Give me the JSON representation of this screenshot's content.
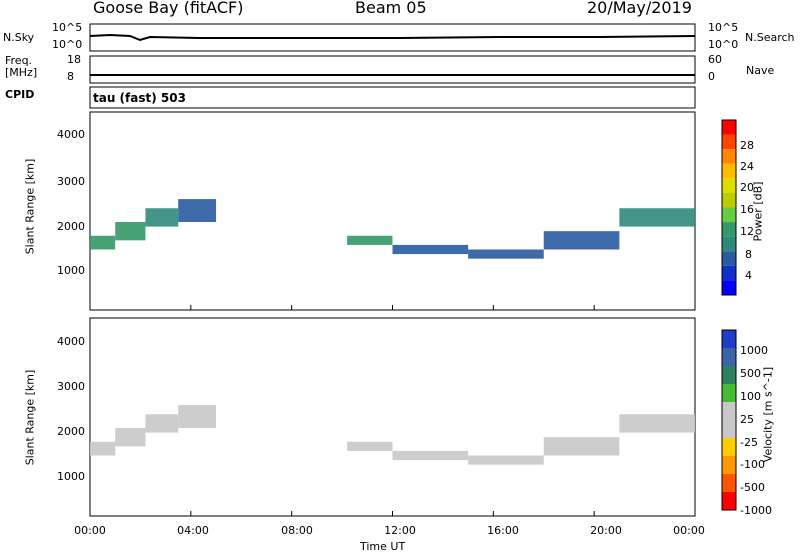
{
  "header": {
    "station": "Goose Bay (fitACF)",
    "beam": "Beam 05",
    "date": "20/May/2019"
  },
  "top_panels": {
    "nsky_label": "N.Sky",
    "nsky_ticks": [
      "10^5",
      "10^0"
    ],
    "nsearch_label": "N.Search",
    "nsearch_ticks": [
      "10^5",
      "10^0"
    ],
    "freq_label": "Freq.",
    "freq_unit": "[MHz]",
    "freq_ticks": [
      "18",
      "8"
    ],
    "nave_label": "Nave",
    "nave_ticks": [
      "60",
      "0"
    ],
    "cpid_label": "CPID",
    "cpid_value": "tau (fast) 503"
  },
  "axes": {
    "ylabel_power": "Slant Range [km]",
    "ylabel_velocity": "Slant Range [km]",
    "xlabel": "Time UT",
    "x_ticks": [
      "00:00",
      "04:00",
      "08:00",
      "12:00",
      "16:00",
      "20:00",
      "00:00"
    ],
    "y_ticks": [
      "4000",
      "3000",
      "2000",
      "1000"
    ]
  },
  "colorbars": {
    "power": {
      "label": "Power [dB]",
      "ticks": [
        "28",
        "24",
        "20",
        "16",
        "12",
        "8",
        "4"
      ],
      "colors": [
        "#ff0000",
        "#ff4400",
        "#ff8800",
        "#ffbb00",
        "#dddd00",
        "#bbcc00",
        "#66cc44",
        "#339966",
        "#2d8a7a",
        "#2a5aa0",
        "#1030cc",
        "#0000ff"
      ]
    },
    "velocity": {
      "label": "Velocity [m s^-1]",
      "ticks": [
        "1000",
        "500",
        "100",
        "25",
        "-25",
        "-100",
        "-500",
        "-1000"
      ],
      "colors": [
        "#1e3cc8",
        "#3a64a8",
        "#2e8060",
        "#44bb33",
        "#c8c8c8",
        "#c8c8c8",
        "#ffcc00",
        "#ff9900",
        "#ff5500",
        "#ff0000"
      ]
    }
  },
  "chart_data": [
    {
      "type": "heatmap",
      "title": "Power",
      "xlabel": "Time UT",
      "ylabel": "Slant Range [km]",
      "xlim": [
        0,
        24
      ],
      "ylim": [
        180,
        4500
      ],
      "colorbar": "Power [dB]",
      "colorbar_range": [
        0,
        30
      ],
      "bands": [
        {
          "t0": 0.0,
          "t1": 1.0,
          "r0": 1500,
          "r1": 1800,
          "value": 12
        },
        {
          "t0": 1.0,
          "t1": 2.2,
          "r0": 1700,
          "r1": 2100,
          "value": 10
        },
        {
          "t0": 2.2,
          "t1": 3.5,
          "r0": 2000,
          "r1": 2400,
          "value": 8
        },
        {
          "t0": 3.5,
          "t1": 5.0,
          "r0": 2100,
          "r1": 2600,
          "value": 6
        },
        {
          "t0": 10.2,
          "t1": 12.0,
          "r0": 1600,
          "r1": 1800,
          "value": 10
        },
        {
          "t0": 12.0,
          "t1": 15.0,
          "r0": 1400,
          "r1": 1600,
          "value": 6
        },
        {
          "t0": 15.0,
          "t1": 18.0,
          "r0": 1300,
          "r1": 1500,
          "value": 5
        },
        {
          "t0": 18.0,
          "t1": 21.0,
          "r0": 1500,
          "r1": 1900,
          "value": 6
        },
        {
          "t0": 21.0,
          "t1": 24.0,
          "r0": 2000,
          "r1": 2400,
          "value": 8
        }
      ]
    },
    {
      "type": "heatmap",
      "title": "Velocity",
      "xlabel": "Time UT",
      "ylabel": "Slant Range [km]",
      "xlim": [
        0,
        24
      ],
      "ylim": [
        180,
        4500
      ],
      "colorbar": "Velocity [m s^-1]",
      "colorbar_range": [
        -1000,
        1000
      ],
      "bands": [
        {
          "t0": 0.0,
          "t1": 1.0,
          "r0": 1500,
          "r1": 1800,
          "value": 0
        },
        {
          "t0": 1.0,
          "t1": 2.2,
          "r0": 1700,
          "r1": 2100,
          "value": 0
        },
        {
          "t0": 2.2,
          "t1": 3.5,
          "r0": 2000,
          "r1": 2400,
          "value": 0
        },
        {
          "t0": 3.5,
          "t1": 5.0,
          "r0": 2100,
          "r1": 2600,
          "value": 0
        },
        {
          "t0": 10.2,
          "t1": 12.0,
          "r0": 1600,
          "r1": 1800,
          "value": 0
        },
        {
          "t0": 12.0,
          "t1": 15.0,
          "r0": 1400,
          "r1": 1600,
          "value": 0
        },
        {
          "t0": 15.0,
          "t1": 18.0,
          "r0": 1300,
          "r1": 1500,
          "value": 0
        },
        {
          "t0": 18.0,
          "t1": 21.0,
          "r0": 1500,
          "r1": 1900,
          "value": 0
        },
        {
          "t0": 21.0,
          "t1": 24.0,
          "r0": 2000,
          "r1": 2400,
          "value": 0
        }
      ]
    }
  ]
}
